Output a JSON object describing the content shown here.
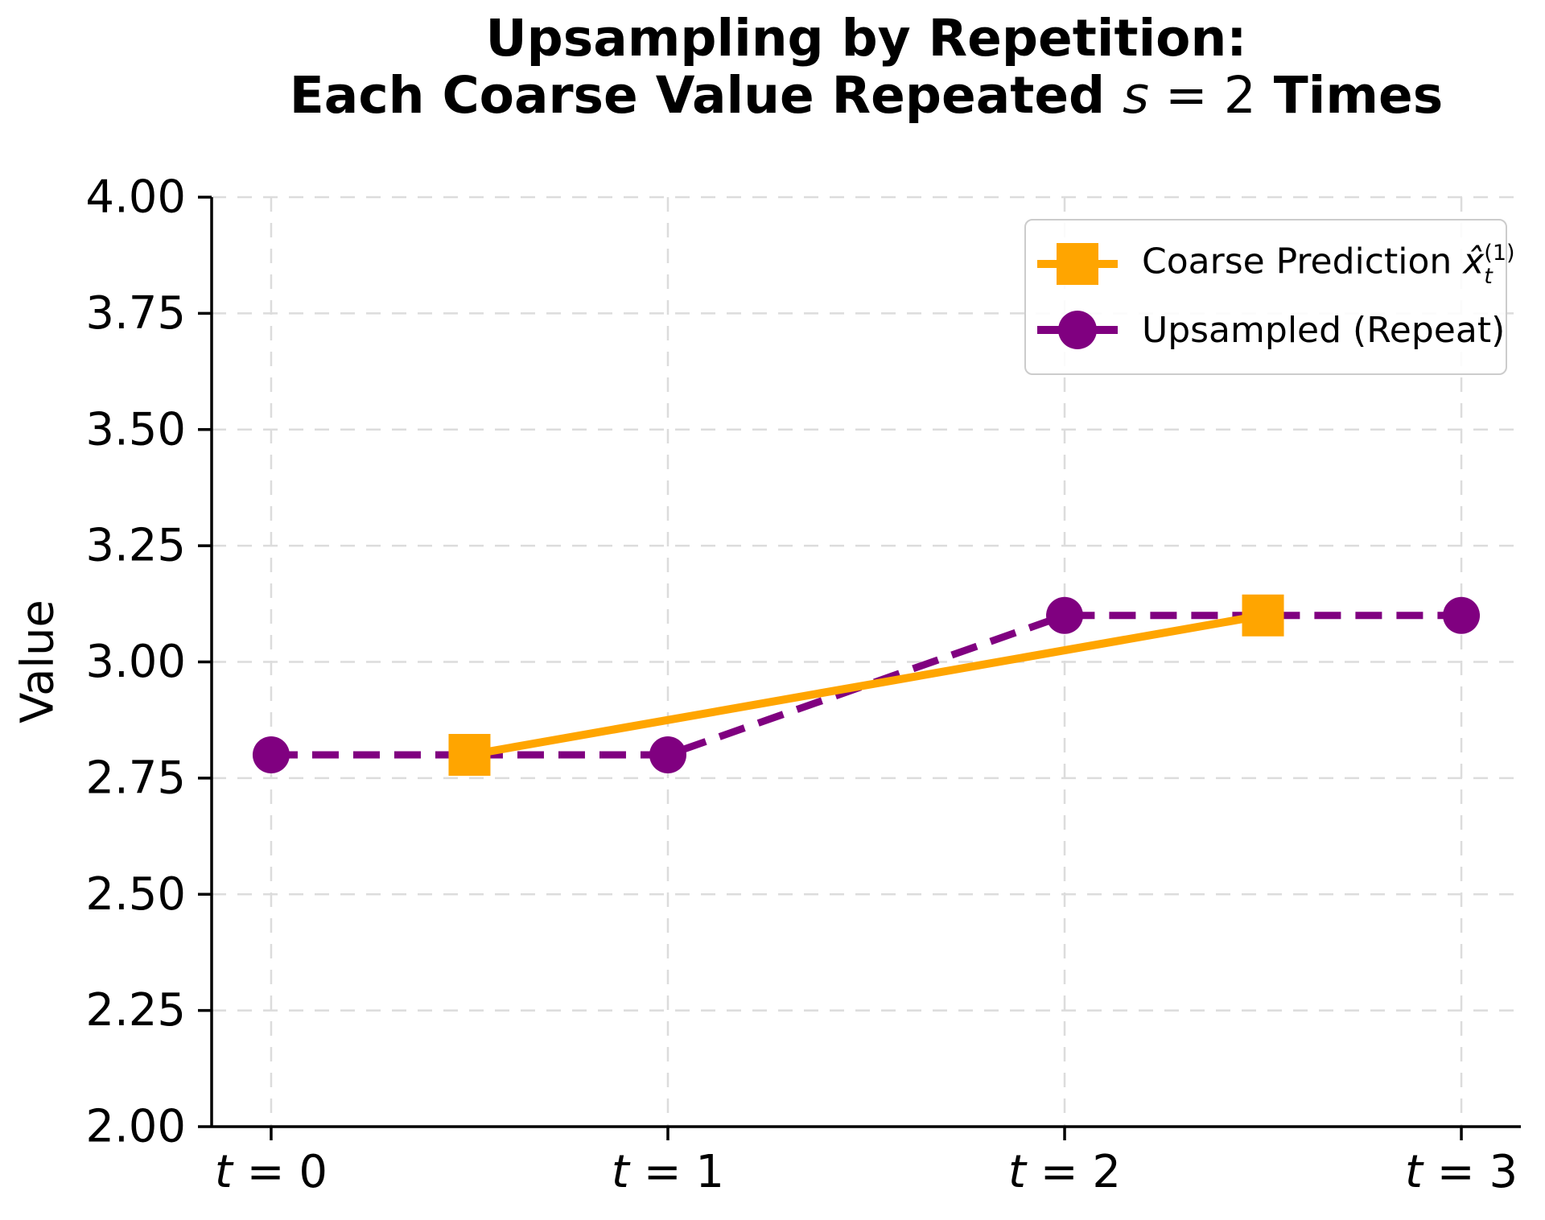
{
  "title": {
    "line1": "Upsampling by Repetition:",
    "line2_prefix": "Each Coarse Value Repeated ",
    "line2_var": "s",
    "line2_rest": " = 2",
    "line2_suffix": " Times"
  },
  "legend": {
    "coarse": {
      "prefix": "Coarse Prediction ",
      "base": "x̂",
      "sup": "(1)",
      "sub": "t"
    },
    "upsampled": {
      "label": "Upsampled (Repeat)"
    }
  },
  "chart_data": {
    "type": "line",
    "title": "Upsampling by Repetition: Each Coarse Value Repeated s = 2 Times",
    "xlabel": "",
    "ylabel": "Value",
    "xlim": [
      -0.15,
      3.15
    ],
    "ylim": [
      2.0,
      4.0
    ],
    "grid": true,
    "grid_style": "dashed",
    "legend_position": "upper right",
    "x_ticks": [
      {
        "value": 0,
        "var": "t",
        "rest": " = 0"
      },
      {
        "value": 1,
        "var": "t",
        "rest": " = 1"
      },
      {
        "value": 2,
        "var": "t",
        "rest": " = 2"
      },
      {
        "value": 3,
        "var": "t",
        "rest": " = 3"
      }
    ],
    "y_ticks": [
      {
        "value": 2.0,
        "label": "2.00"
      },
      {
        "value": 2.25,
        "label": "2.25"
      },
      {
        "value": 2.5,
        "label": "2.50"
      },
      {
        "value": 2.75,
        "label": "2.75"
      },
      {
        "value": 3.0,
        "label": "3.00"
      },
      {
        "value": 3.25,
        "label": "3.25"
      },
      {
        "value": 3.5,
        "label": "3.50"
      },
      {
        "value": 3.75,
        "label": "3.75"
      },
      {
        "value": 4.0,
        "label": "4.00"
      }
    ],
    "series": [
      {
        "name": "Upsampled (Repeat)",
        "color": "#800080",
        "line_style": "dashed",
        "line_width": 9,
        "marker": "circle",
        "marker_size": 46,
        "x": [
          0,
          1,
          2,
          3
        ],
        "y": [
          2.8,
          2.8,
          3.1,
          3.1
        ]
      },
      {
        "name": "Coarse Prediction x̂_t^(1)",
        "color": "#FFA500",
        "line_style": "solid",
        "line_width": 10,
        "marker": "square",
        "marker_size": 52,
        "x": [
          0.5,
          2.5
        ],
        "y": [
          2.8,
          3.1
        ]
      }
    ],
    "colors": {
      "grid": "#dcdcdc",
      "axis": "#000000",
      "text": "#000000"
    }
  }
}
